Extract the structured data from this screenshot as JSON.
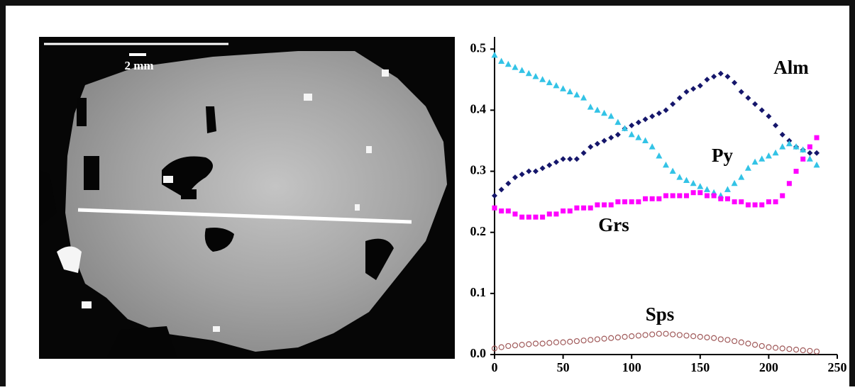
{
  "image": {
    "scale_label": "2 mm"
  },
  "chart_data": {
    "type": "scatter",
    "x": [
      0,
      5,
      10,
      15,
      20,
      25,
      30,
      35,
      40,
      45,
      50,
      55,
      60,
      65,
      70,
      75,
      80,
      85,
      90,
      95,
      100,
      105,
      110,
      115,
      120,
      125,
      130,
      135,
      140,
      145,
      150,
      155,
      160,
      165,
      170,
      175,
      180,
      185,
      190,
      195,
      200,
      205,
      210,
      215,
      220,
      225,
      230,
      235
    ],
    "series": [
      {
        "name": "Alm",
        "color": "#15166b",
        "marker": "diamond",
        "values": [
          0.26,
          0.27,
          0.28,
          0.29,
          0.295,
          0.3,
          0.3,
          0.305,
          0.31,
          0.315,
          0.32,
          0.32,
          0.32,
          0.33,
          0.34,
          0.345,
          0.35,
          0.355,
          0.36,
          0.37,
          0.375,
          0.38,
          0.385,
          0.39,
          0.395,
          0.4,
          0.41,
          0.42,
          0.43,
          0.435,
          0.44,
          0.45,
          0.455,
          0.46,
          0.455,
          0.445,
          0.43,
          0.42,
          0.41,
          0.4,
          0.39,
          0.375,
          0.36,
          0.35,
          0.34,
          0.335,
          0.33,
          0.33
        ]
      },
      {
        "name": "Py",
        "color": "#33c3e6",
        "marker": "triangle",
        "values": [
          0.49,
          0.48,
          0.475,
          0.47,
          0.465,
          0.46,
          0.455,
          0.45,
          0.445,
          0.44,
          0.435,
          0.43,
          0.425,
          0.42,
          0.405,
          0.4,
          0.395,
          0.39,
          0.38,
          0.37,
          0.36,
          0.355,
          0.35,
          0.34,
          0.325,
          0.31,
          0.3,
          0.29,
          0.285,
          0.28,
          0.275,
          0.27,
          0.265,
          0.26,
          0.27,
          0.28,
          0.29,
          0.305,
          0.315,
          0.32,
          0.325,
          0.33,
          0.34,
          0.345,
          0.34,
          0.335,
          0.32,
          0.31
        ]
      },
      {
        "name": "Grs",
        "color": "#ff00ff",
        "marker": "square",
        "values": [
          0.24,
          0.235,
          0.235,
          0.23,
          0.225,
          0.225,
          0.225,
          0.225,
          0.23,
          0.23,
          0.235,
          0.235,
          0.24,
          0.24,
          0.24,
          0.245,
          0.245,
          0.245,
          0.25,
          0.25,
          0.25,
          0.25,
          0.255,
          0.255,
          0.255,
          0.26,
          0.26,
          0.26,
          0.26,
          0.265,
          0.265,
          0.26,
          0.26,
          0.255,
          0.255,
          0.25,
          0.25,
          0.245,
          0.245,
          0.245,
          0.25,
          0.25,
          0.26,
          0.28,
          0.3,
          0.32,
          0.34,
          0.355
        ]
      },
      {
        "name": "Sps",
        "color": "#a05a5a",
        "marker": "open-circle",
        "values": [
          0.01,
          0.012,
          0.014,
          0.015,
          0.016,
          0.017,
          0.018,
          0.018,
          0.019,
          0.02,
          0.02,
          0.021,
          0.022,
          0.023,
          0.024,
          0.025,
          0.026,
          0.027,
          0.028,
          0.029,
          0.03,
          0.031,
          0.032,
          0.033,
          0.034,
          0.034,
          0.033,
          0.032,
          0.031,
          0.03,
          0.029,
          0.028,
          0.027,
          0.025,
          0.024,
          0.022,
          0.02,
          0.018,
          0.016,
          0.014,
          0.012,
          0.011,
          0.01,
          0.009,
          0.008,
          0.007,
          0.006,
          0.005
        ]
      }
    ],
    "xlim": [
      0,
      250
    ],
    "xticks": [
      0,
      50,
      100,
      150,
      200,
      250
    ],
    "ylim": [
      0,
      0.52
    ],
    "yticks": [
      {
        "value": 0,
        "label": "0.0"
      },
      0.1,
      0.2,
      0.3,
      0.4,
      0.5
    ]
  }
}
